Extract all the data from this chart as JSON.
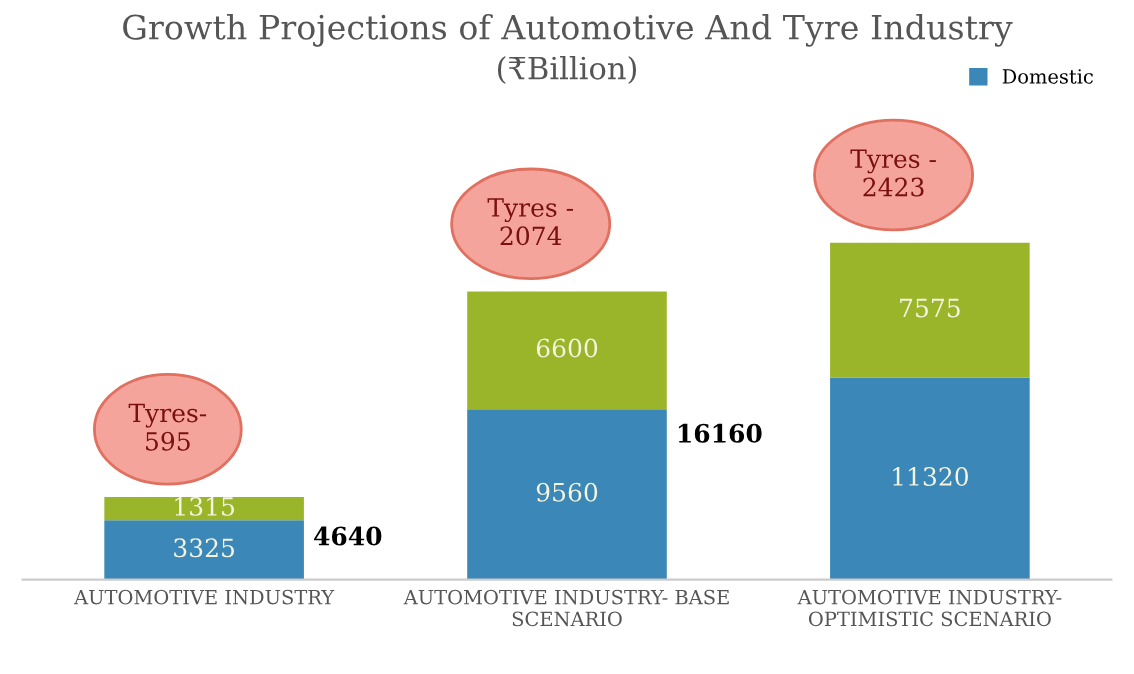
{
  "chart_data": {
    "type": "bar",
    "stacked": true,
    "title": "Growth Projections of Automotive And Tyre Industry",
    "subtitle": "(₹Billion)",
    "categories": [
      "AUTOMOTIVE INDUSTRY",
      "AUTOMOTIVE INDUSTRY- BASE\nSCENARIO",
      "AUTOMOTIVE INDUSTRY-\nOPTIMISTIC SCENARIO"
    ],
    "series": [
      {
        "name": "Domestic",
        "color": "#3a87b8",
        "values": [
          3325,
          9560,
          11320
        ]
      },
      {
        "color": "#9bb52a",
        "values": [
          1315,
          6600,
          7575
        ]
      }
    ],
    "data_labels": true,
    "totals": [
      "4640",
      "16160",
      null
    ],
    "legend": "top right",
    "tick_labels": "x",
    "annotations": [
      "Tyres-\n595",
      "Tyres -\n2074",
      "Tyres -\n2423"
    ]
  }
}
